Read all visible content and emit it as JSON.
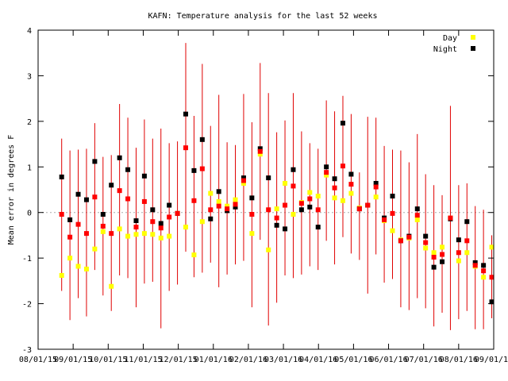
{
  "chart_data": {
    "type": "scatter",
    "title": "KAFN: Temperature analysis for the last 52 weeks",
    "xlabel": "",
    "ylabel": "Mean error in degrees F",
    "ylim": [
      -3,
      4
    ],
    "y_ticks": [
      "-3",
      "-2",
      "-1",
      "0",
      "1",
      "2",
      "3",
      "4"
    ],
    "x_ticks": [
      "08/01/15",
      "09/01/15",
      "10/01/15",
      "11/01/15",
      "12/01/15",
      "01/01/16",
      "02/01/16",
      "03/01/16",
      "04/01/16",
      "05/01/16",
      "06/01/16",
      "07/01/16",
      "08/01/16",
      "09/01/16"
    ],
    "zero_line": "dashed",
    "legend_position": "top-right",
    "colors": {
      "error_bar": "#e00000",
      "mean": "#ff0000",
      "day": "#ffff00",
      "night": "#000000",
      "zero_line": "#aaaaaa"
    },
    "series": [
      {
        "name": "Day",
        "color": "#ffff00",
        "values": [
          -1.38,
          -1.0,
          -1.18,
          -1.24,
          -0.8,
          -0.42,
          -1.62,
          -0.36,
          -0.52,
          -0.48,
          -0.46,
          -0.48,
          -0.56,
          -0.52,
          -0.02,
          -0.32,
          -0.93,
          -0.2,
          0.42,
          0.24,
          0.14,
          0.28,
          0.64,
          -0.46,
          1.28,
          -0.82,
          0.08,
          0.64,
          -0.04,
          0.22,
          0.44,
          0.36,
          0.82,
          0.32,
          0.26,
          0.42,
          0.1,
          0.16,
          0.34,
          -0.18,
          -0.4,
          -0.6,
          -0.56,
          -0.16,
          -0.78,
          -0.88,
          -0.76,
          -0.12,
          -1.06,
          -0.88,
          -1.18,
          -1.42,
          -0.76
        ]
      },
      {
        "name": "Night",
        "color": "#000000",
        "values": [
          0.78,
          -0.16,
          0.4,
          0.28,
          1.12,
          -0.04,
          0.6,
          1.2,
          0.94,
          -0.18,
          0.8,
          0.06,
          -0.24,
          0.16,
          -0.02,
          2.16,
          0.92,
          1.6,
          -0.14,
          0.46,
          0.04,
          0.12,
          0.76,
          0.32,
          1.4,
          0.76,
          -0.28,
          -0.36,
          0.94,
          0.06,
          0.12,
          -0.32,
          1.0,
          0.74,
          1.96,
          0.84,
          0.08,
          0.16,
          0.64,
          -0.12,
          0.36,
          -0.62,
          -0.52,
          0.08,
          -0.52,
          -1.2,
          -1.08,
          -0.14,
          -0.6,
          -0.2,
          -1.1,
          -1.16,
          -1.96
        ]
      }
    ],
    "mean_with_error": {
      "values": [
        -0.04,
        -0.54,
        -0.26,
        -0.46,
        0.34,
        -0.3,
        -0.46,
        0.48,
        0.3,
        -0.32,
        0.24,
        -0.2,
        -0.34,
        -0.1,
        -0.02,
        1.42,
        0.26,
        0.96,
        0.06,
        0.14,
        0.08,
        0.18,
        0.7,
        -0.04,
        1.34,
        0.06,
        -0.12,
        0.16,
        0.58,
        0.2,
        0.3,
        0.06,
        0.88,
        0.54,
        1.02,
        0.62,
        0.08,
        0.16,
        0.56,
        -0.16,
        -0.02,
        -0.62,
        -0.54,
        -0.06,
        -0.66,
        -0.98,
        -0.92,
        -0.12,
        -0.88,
        -0.62,
        -1.16,
        -1.28,
        -1.42
      ],
      "high": [
        1.62,
        1.36,
        1.38,
        1.4,
        1.96,
        1.22,
        1.26,
        2.38,
        2.08,
        1.42,
        2.04,
        1.62,
        1.84,
        1.52,
        1.56,
        3.72,
        2.12,
        3.26,
        1.9,
        2.58,
        1.54,
        1.48,
        2.6,
        1.98,
        3.28,
        2.62,
        1.76,
        2.02,
        2.62,
        1.78,
        1.52,
        1.4,
        2.46,
        2.22,
        2.56,
        2.16,
        0.88,
        2.1,
        2.08,
        1.46,
        1.38,
        1.36,
        1.1,
        1.72,
        0.84,
        0.6,
        0.38,
        2.34,
        0.6,
        0.64,
        0.14,
        0.06,
        -0.5
      ],
      "low": [
        -1.72,
        -2.36,
        -1.88,
        -2.28,
        -1.26,
        -1.82,
        -2.16,
        -1.38,
        -1.44,
        -2.08,
        -1.56,
        -1.52,
        -2.54,
        -1.72,
        -1.58,
        -0.86,
        -1.42,
        -1.32,
        -1.1,
        -1.64,
        -1.36,
        -1.14,
        -1.06,
        -2.08,
        -0.6,
        -2.48,
        -1.98,
        -1.38,
        -1.44,
        -1.36,
        -1.18,
        -1.26,
        -0.62,
        -1.14,
        -0.54,
        -0.9,
        -1.04,
        -1.78,
        -0.92,
        -1.54,
        -1.46,
        -2.08,
        -2.14,
        -1.88,
        -2.1,
        -2.5,
        -2.2,
        -2.58,
        -2.34,
        -2.16,
        -2.56,
        -2.56,
        -2.32
      ]
    }
  }
}
